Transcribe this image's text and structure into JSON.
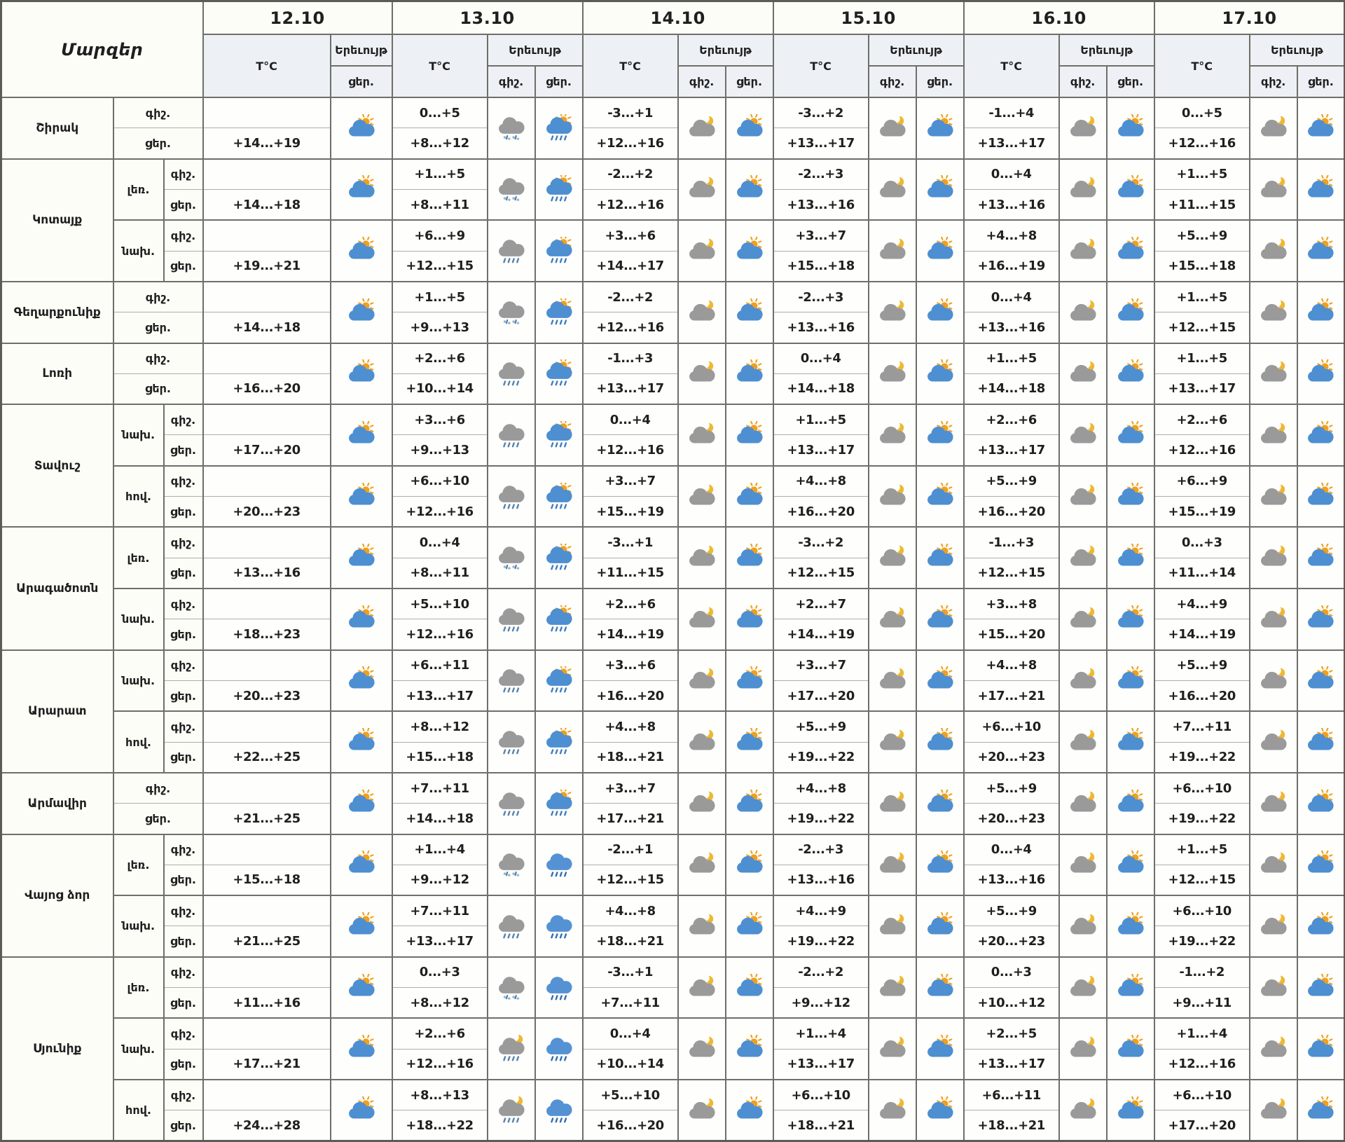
{
  "header": {
    "regions_label": "Մարզեր",
    "temp_label": "T°C",
    "phenomenon_label": "Երեւույթ",
    "night_label": "գիշ.",
    "day_label": "ցեր."
  },
  "dates": [
    "12.10",
    "13.10",
    "14.10",
    "15.10",
    "16.10",
    "17.10"
  ],
  "icons": {
    "sun-cloud": "sun behind blue cloud (partly cloudy day)",
    "moon-cloud": "moon behind gray cloud (partly cloudy night)",
    "sun-rain": "sun, blue cloud and rain",
    "rain-gray": "gray cloud with rain",
    "rain-blue": "blue cloud with rain",
    "sleet": "gray cloud with snow and rain mix",
    "moon-rain": "moon, gray cloud and rain"
  },
  "colors": {
    "border": "#6f6f69",
    "header_bg": "#edf1f5",
    "cell_bg": "#fefefc",
    "page_bg": "#fbfaf3",
    "cloud_blue": "#4d8fd1",
    "cloud_gray": "#9a9a9a",
    "sun_yellow": "#f0a01e",
    "moon_yellow": "#efb832",
    "rain_blue": "#3e7dc0"
  },
  "regions": [
    {
      "name": "Շիրակ",
      "zones": [
        {
          "zone": "",
          "days": [
            [
              "",
              "+14...+19",
              "",
              "sun-cloud"
            ],
            [
              "0...+5",
              "+8...+12",
              "sleet",
              "sun-rain"
            ],
            [
              "-3...+1",
              "+12...+16",
              "moon-cloud",
              "sun-cloud"
            ],
            [
              "-3...+2",
              "+13...+17",
              "moon-cloud",
              "sun-cloud"
            ],
            [
              "-1...+4",
              "+13...+17",
              "moon-cloud",
              "sun-cloud"
            ],
            [
              "0...+5",
              "+12...+16",
              "moon-cloud",
              "sun-cloud"
            ]
          ]
        }
      ]
    },
    {
      "name": "Կոտայք",
      "zones": [
        {
          "zone": "լեռ.",
          "days": [
            [
              "",
              "+14...+18",
              "",
              "sun-cloud"
            ],
            [
              "+1...+5",
              "+8...+11",
              "sleet",
              "sun-rain"
            ],
            [
              "-2...+2",
              "+12...+16",
              "moon-cloud",
              "sun-cloud"
            ],
            [
              "-2...+3",
              "+13...+16",
              "moon-cloud",
              "sun-cloud"
            ],
            [
              "0...+4",
              "+13...+16",
              "moon-cloud",
              "sun-cloud"
            ],
            [
              "+1...+5",
              "+11...+15",
              "moon-cloud",
              "sun-cloud"
            ]
          ]
        },
        {
          "zone": "նախ.",
          "days": [
            [
              "",
              "+19...+21",
              "",
              "sun-cloud"
            ],
            [
              "+6...+9",
              "+12...+15",
              "rain-gray",
              "sun-rain"
            ],
            [
              "+3...+6",
              "+14...+17",
              "moon-cloud",
              "sun-cloud"
            ],
            [
              "+3...+7",
              "+15...+18",
              "moon-cloud",
              "sun-cloud"
            ],
            [
              "+4...+8",
              "+16...+19",
              "moon-cloud",
              "sun-cloud"
            ],
            [
              "+5...+9",
              "+15...+18",
              "moon-cloud",
              "sun-cloud"
            ]
          ]
        }
      ]
    },
    {
      "name": "Գեղարքունիք",
      "zones": [
        {
          "zone": "",
          "days": [
            [
              "",
              "+14...+18",
              "",
              "sun-cloud"
            ],
            [
              "+1...+5",
              "+9...+13",
              "sleet",
              "sun-rain"
            ],
            [
              "-2...+2",
              "+12...+16",
              "moon-cloud",
              "sun-cloud"
            ],
            [
              "-2...+3",
              "+13...+16",
              "moon-cloud",
              "sun-cloud"
            ],
            [
              "0...+4",
              "+13...+16",
              "moon-cloud",
              "sun-cloud"
            ],
            [
              "+1...+5",
              "+12...+15",
              "moon-cloud",
              "sun-cloud"
            ]
          ]
        }
      ]
    },
    {
      "name": "Լոռի",
      "zones": [
        {
          "zone": "",
          "days": [
            [
              "",
              "+16...+20",
              "",
              "sun-cloud"
            ],
            [
              "+2...+6",
              "+10...+14",
              "rain-gray",
              "sun-rain"
            ],
            [
              "-1...+3",
              "+13...+17",
              "moon-cloud",
              "sun-cloud"
            ],
            [
              "0...+4",
              "+14...+18",
              "moon-cloud",
              "sun-cloud"
            ],
            [
              "+1...+5",
              "+14...+18",
              "moon-cloud",
              "sun-cloud"
            ],
            [
              "+1...+5",
              "+13...+17",
              "moon-cloud",
              "sun-cloud"
            ]
          ]
        }
      ]
    },
    {
      "name": "Տավուշ",
      "zones": [
        {
          "zone": "նախ.",
          "days": [
            [
              "",
              "+17...+20",
              "",
              "sun-cloud"
            ],
            [
              "+3...+6",
              "+9...+13",
              "rain-gray",
              "sun-rain"
            ],
            [
              "0...+4",
              "+12...+16",
              "moon-cloud",
              "sun-cloud"
            ],
            [
              "+1...+5",
              "+13...+17",
              "moon-cloud",
              "sun-cloud"
            ],
            [
              "+2...+6",
              "+13...+17",
              "moon-cloud",
              "sun-cloud"
            ],
            [
              "+2...+6",
              "+12...+16",
              "moon-cloud",
              "sun-cloud"
            ]
          ]
        },
        {
          "zone": "հով.",
          "days": [
            [
              "",
              "+20...+23",
              "",
              "sun-cloud"
            ],
            [
              "+6...+10",
              "+12...+16",
              "rain-gray",
              "sun-rain"
            ],
            [
              "+3...+7",
              "+15...+19",
              "moon-cloud",
              "sun-cloud"
            ],
            [
              "+4...+8",
              "+16...+20",
              "moon-cloud",
              "sun-cloud"
            ],
            [
              "+5...+9",
              "+16...+20",
              "moon-cloud",
              "sun-cloud"
            ],
            [
              "+6...+9",
              "+15...+19",
              "moon-cloud",
              "sun-cloud"
            ]
          ]
        }
      ]
    },
    {
      "name": "Արագածոտն",
      "zones": [
        {
          "zone": "լեռ.",
          "days": [
            [
              "",
              "+13...+16",
              "",
              "sun-cloud"
            ],
            [
              "0...+4",
              "+8...+11",
              "sleet",
              "sun-rain"
            ],
            [
              "-3...+1",
              "+11...+15",
              "moon-cloud",
              "sun-cloud"
            ],
            [
              "-3...+2",
              "+12...+15",
              "moon-cloud",
              "sun-cloud"
            ],
            [
              "-1...+3",
              "+12...+15",
              "moon-cloud",
              "sun-cloud"
            ],
            [
              "0...+3",
              "+11...+14",
              "moon-cloud",
              "sun-cloud"
            ]
          ]
        },
        {
          "zone": "նախ.",
          "days": [
            [
              "",
              "+18...+23",
              "",
              "sun-cloud"
            ],
            [
              "+5...+10",
              "+12...+16",
              "rain-gray",
              "sun-rain"
            ],
            [
              "+2...+6",
              "+14...+19",
              "moon-cloud",
              "sun-cloud"
            ],
            [
              "+2...+7",
              "+14...+19",
              "moon-cloud",
              "sun-cloud"
            ],
            [
              "+3...+8",
              "+15...+20",
              "moon-cloud",
              "sun-cloud"
            ],
            [
              "+4...+9",
              "+14...+19",
              "moon-cloud",
              "sun-cloud"
            ]
          ]
        }
      ]
    },
    {
      "name": "Արարատ",
      "zones": [
        {
          "zone": "նախ.",
          "days": [
            [
              "",
              "+20...+23",
              "",
              "sun-cloud"
            ],
            [
              "+6...+11",
              "+13...+17",
              "rain-gray",
              "sun-rain"
            ],
            [
              "+3...+6",
              "+16...+20",
              "moon-cloud",
              "sun-cloud"
            ],
            [
              "+3...+7",
              "+17...+20",
              "moon-cloud",
              "sun-cloud"
            ],
            [
              "+4...+8",
              "+17...+21",
              "moon-cloud",
              "sun-cloud"
            ],
            [
              "+5...+9",
              "+16...+20",
              "moon-cloud",
              "sun-cloud"
            ]
          ]
        },
        {
          "zone": "հով.",
          "days": [
            [
              "",
              "+22...+25",
              "",
              "sun-cloud"
            ],
            [
              "+8...+12",
              "+15...+18",
              "rain-gray",
              "sun-rain"
            ],
            [
              "+4...+8",
              "+18...+21",
              "moon-cloud",
              "sun-cloud"
            ],
            [
              "+5...+9",
              "+19...+22",
              "moon-cloud",
              "sun-cloud"
            ],
            [
              "+6...+10",
              "+20...+23",
              "moon-cloud",
              "sun-cloud"
            ],
            [
              "+7...+11",
              "+19...+22",
              "moon-cloud",
              "sun-cloud"
            ]
          ]
        }
      ]
    },
    {
      "name": "Արմավիր",
      "zones": [
        {
          "zone": "",
          "days": [
            [
              "",
              "+21...+25",
              "",
              "sun-cloud"
            ],
            [
              "+7...+11",
              "+14...+18",
              "rain-gray",
              "sun-rain"
            ],
            [
              "+3...+7",
              "+17...+21",
              "moon-cloud",
              "sun-cloud"
            ],
            [
              "+4...+8",
              "+19...+22",
              "moon-cloud",
              "sun-cloud"
            ],
            [
              "+5...+9",
              "+20...+23",
              "moon-cloud",
              "sun-cloud"
            ],
            [
              "+6...+10",
              "+19...+22",
              "moon-cloud",
              "sun-cloud"
            ]
          ]
        }
      ]
    },
    {
      "name": "Վայոց ձոր",
      "zones": [
        {
          "zone": "լեռ.",
          "days": [
            [
              "",
              "+15...+18",
              "",
              "sun-cloud"
            ],
            [
              "+1...+4",
              "+9...+12",
              "sleet",
              "rain-blue"
            ],
            [
              "-2...+1",
              "+12...+15",
              "moon-cloud",
              "sun-cloud"
            ],
            [
              "-2...+3",
              "+13...+16",
              "moon-cloud",
              "sun-cloud"
            ],
            [
              "0...+4",
              "+13...+16",
              "moon-cloud",
              "sun-cloud"
            ],
            [
              "+1...+5",
              "+12...+15",
              "moon-cloud",
              "sun-cloud"
            ]
          ]
        },
        {
          "zone": "նախ.",
          "days": [
            [
              "",
              "+21...+25",
              "",
              "sun-cloud"
            ],
            [
              "+7...+11",
              "+13...+17",
              "rain-gray",
              "rain-blue"
            ],
            [
              "+4...+8",
              "+18...+21",
              "moon-cloud",
              "sun-cloud"
            ],
            [
              "+4...+9",
              "+19...+22",
              "moon-cloud",
              "sun-cloud"
            ],
            [
              "+5...+9",
              "+20...+23",
              "moon-cloud",
              "sun-cloud"
            ],
            [
              "+6...+10",
              "+19...+22",
              "moon-cloud",
              "sun-cloud"
            ]
          ]
        }
      ]
    },
    {
      "name": "Սյունիք",
      "zones": [
        {
          "zone": "լեռ.",
          "days": [
            [
              "",
              "+11...+16",
              "",
              "sun-cloud"
            ],
            [
              "0...+3",
              "+8...+12",
              "sleet",
              "rain-blue"
            ],
            [
              "-3...+1",
              "+7...+11",
              "moon-cloud",
              "sun-cloud"
            ],
            [
              "-2...+2",
              "+9...+12",
              "moon-cloud",
              "sun-cloud"
            ],
            [
              "0...+3",
              "+10...+12",
              "moon-cloud",
              "sun-cloud"
            ],
            [
              "-1...+2",
              "+9...+11",
              "moon-cloud",
              "sun-cloud"
            ]
          ]
        },
        {
          "zone": "նախ.",
          "days": [
            [
              "",
              "+17...+21",
              "",
              "sun-cloud"
            ],
            [
              "+2...+6",
              "+12...+16",
              "moon-rain",
              "rain-blue"
            ],
            [
              "0...+4",
              "+10...+14",
              "moon-cloud",
              "sun-cloud"
            ],
            [
              "+1...+4",
              "+13...+17",
              "moon-cloud",
              "sun-cloud"
            ],
            [
              "+2...+5",
              "+13...+17",
              "moon-cloud",
              "sun-cloud"
            ],
            [
              "+1...+4",
              "+12...+16",
              "moon-cloud",
              "sun-cloud"
            ]
          ]
        },
        {
          "zone": "հով.",
          "days": [
            [
              "",
              "+24...+28",
              "",
              "sun-cloud"
            ],
            [
              "+8...+13",
              "+18...+22",
              "moon-rain",
              "rain-blue"
            ],
            [
              "+5...+10",
              "+16...+20",
              "moon-cloud",
              "sun-cloud"
            ],
            [
              "+6...+10",
              "+18...+21",
              "moon-cloud",
              "sun-cloud"
            ],
            [
              "+6...+11",
              "+18...+21",
              "moon-cloud",
              "sun-cloud"
            ],
            [
              "+6...+10",
              "+17...+20",
              "moon-cloud",
              "sun-cloud"
            ]
          ]
        }
      ]
    }
  ]
}
